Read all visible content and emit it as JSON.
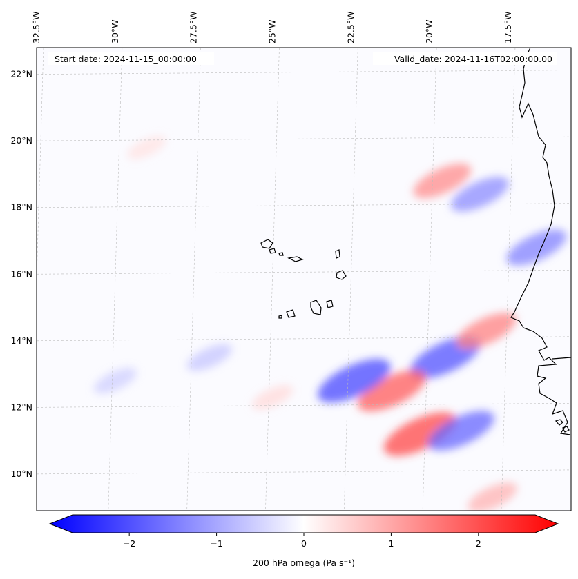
{
  "map": {
    "start_date": "Start date: 2024-11-15_00:00:00",
    "valid_date": "Valid_date: 2024-11-16T02:00:00.00",
    "lon_labels": [
      "32.5°W",
      "30°W",
      "27.5°W",
      "25°W",
      "22.5°W",
      "20°W",
      "17.5°W"
    ],
    "lon_values": [
      -32.5,
      -30,
      -27.5,
      -25,
      -22.5,
      -20,
      -17.5
    ],
    "lat_labels": [
      "22°N",
      "20°N",
      "18°N",
      "16°N",
      "14°N",
      "12°N",
      "10°N"
    ],
    "lat_values": [
      22,
      20,
      18,
      16,
      14,
      12,
      10
    ]
  },
  "colorbar": {
    "tick_values": [
      -2,
      -1,
      0,
      1,
      2
    ],
    "tick_labels": [
      "−2",
      "−1",
      "0",
      "1",
      "2"
    ],
    "range": [
      -2.65,
      2.65
    ],
    "label": "200 hPa omega (Pa s⁻¹)",
    "low_color": "#0000ff",
    "mid_color": "#ffffff",
    "high_color": "#ff0000"
  },
  "chart_data": {
    "type": "heatmap",
    "variable": "200 hPa omega (Pa s⁻¹)",
    "xlim": [
      -32.5,
      -15.5
    ],
    "ylim": [
      8.9,
      22.8
    ],
    "features": [
      {
        "lon": -19.5,
        "lat": 13.5,
        "value": -1.8
      },
      {
        "lon": -21.2,
        "lat": 12.5,
        "value": 1.7
      },
      {
        "lon": -22.4,
        "lat": 12.8,
        "value": -1.9
      },
      {
        "lon": -20.3,
        "lat": 11.2,
        "value": 1.9
      },
      {
        "lon": -19.0,
        "lat": 11.3,
        "value": -1.6
      },
      {
        "lon": -18.2,
        "lat": 14.3,
        "value": 1.3
      },
      {
        "lon": -19.6,
        "lat": 18.8,
        "value": 1.2
      },
      {
        "lon": -18.4,
        "lat": 18.4,
        "value": -1.2
      },
      {
        "lon": -16.6,
        "lat": 16.8,
        "value": -1.3
      },
      {
        "lon": -30.0,
        "lat": 12.8,
        "value": -0.5
      },
      {
        "lon": -27.0,
        "lat": 13.5,
        "value": -0.6
      },
      {
        "lon": -25.0,
        "lat": 12.3,
        "value": 0.4
      },
      {
        "lon": -18.0,
        "lat": 9.3,
        "value": 0.8
      },
      {
        "lon": -29.0,
        "lat": 19.8,
        "value": 0.3
      }
    ]
  }
}
